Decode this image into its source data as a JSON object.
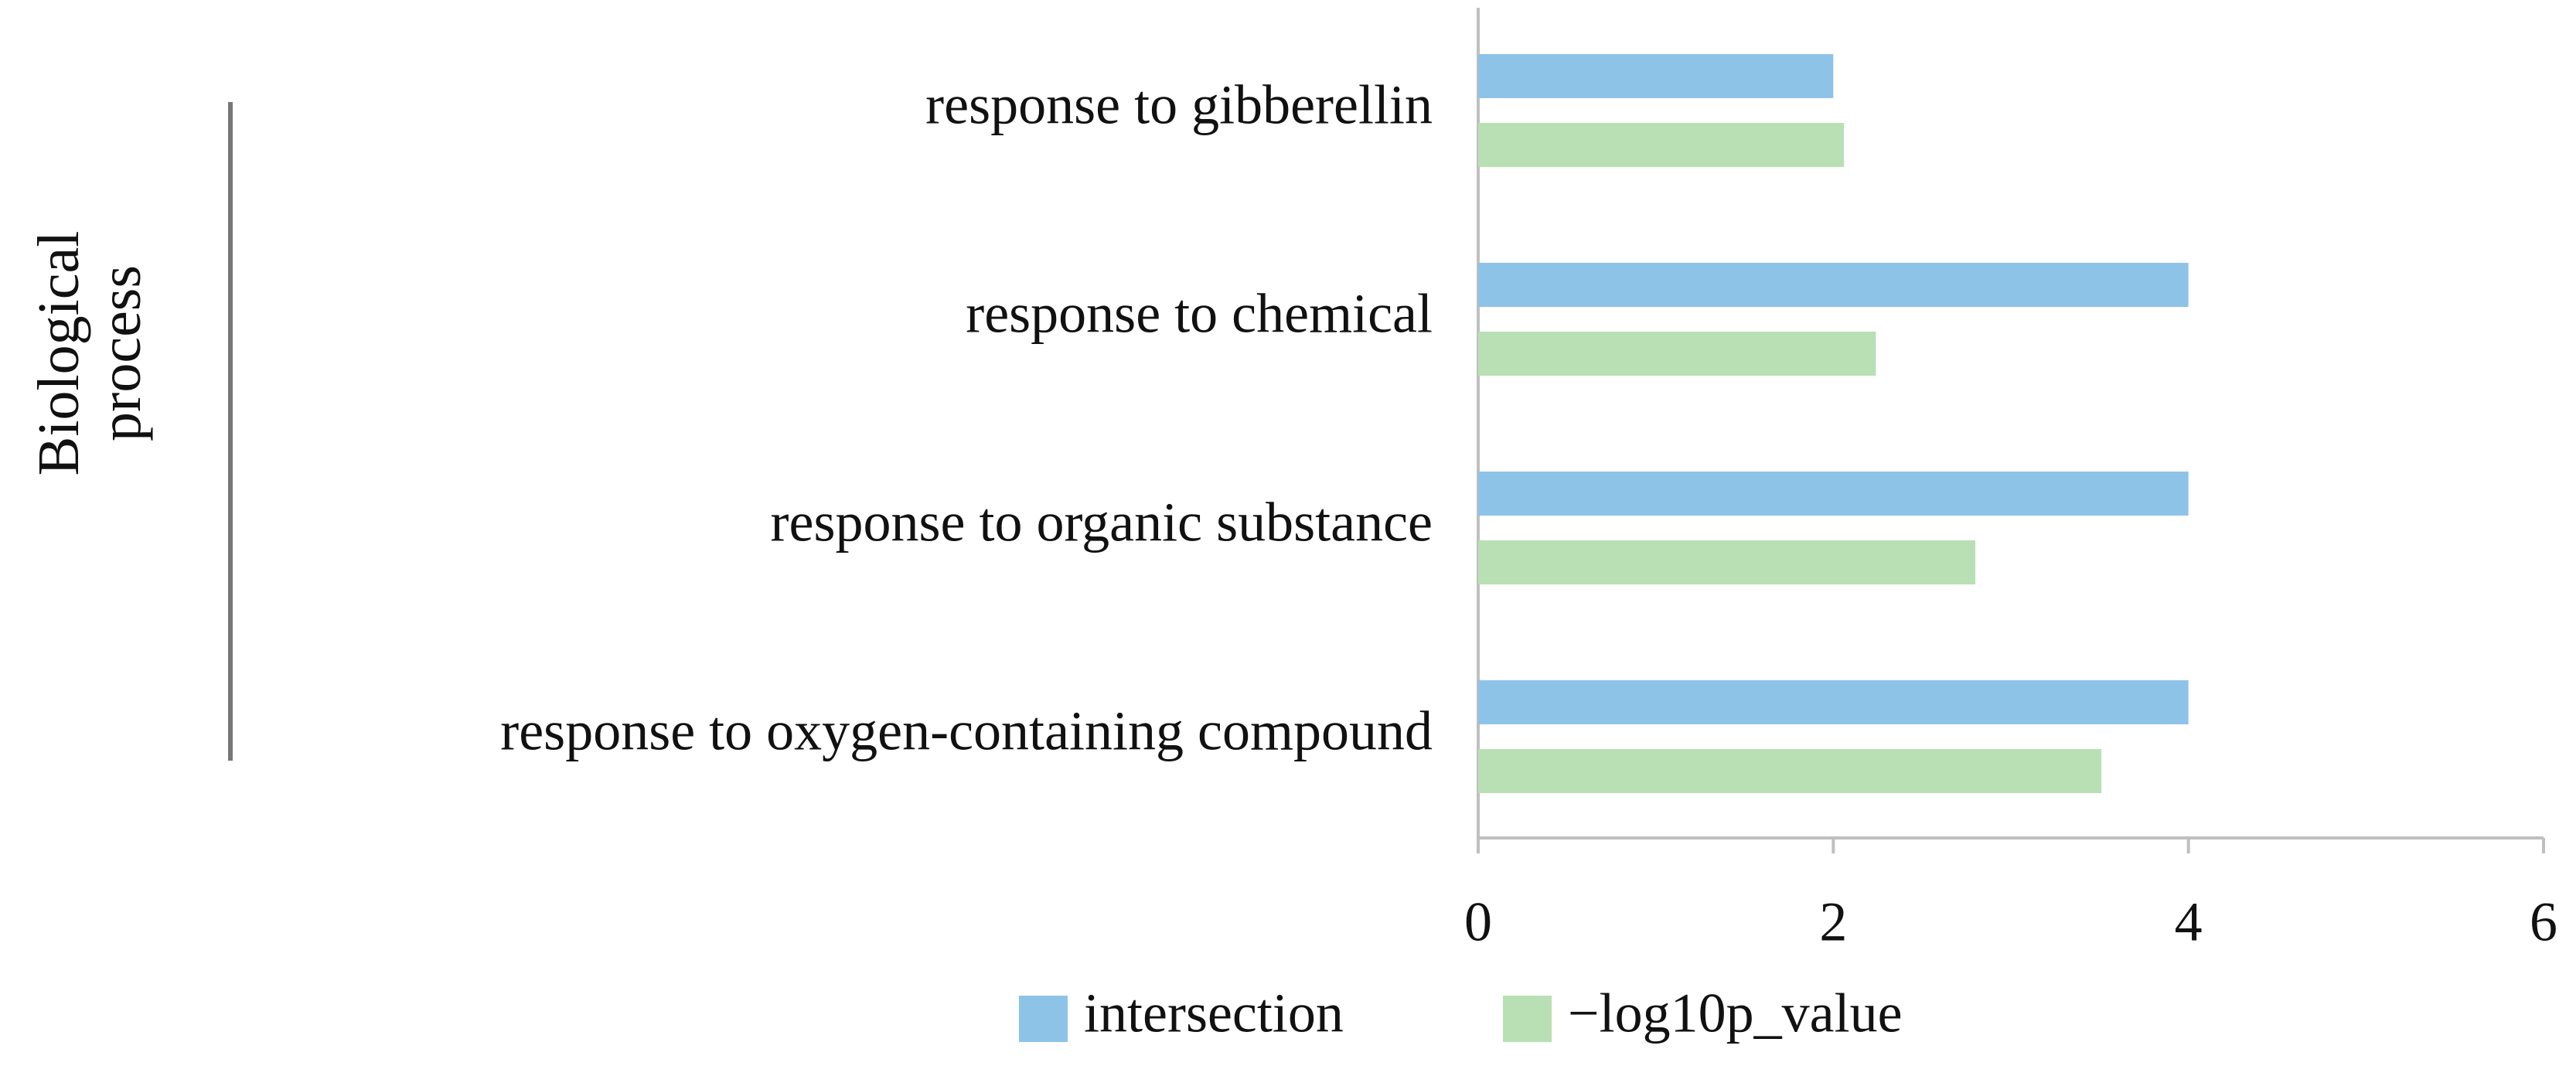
{
  "chart_data": {
    "type": "bar",
    "orientation": "horizontal",
    "group_label": "Biological process",
    "categories": [
      "response to gibberellin",
      "response to chemical",
      "response to organic substance",
      "response to oxygen-containing compound"
    ],
    "series": [
      {
        "name": "intersection",
        "color": "#8ec3e8",
        "values": [
          2,
          4,
          4,
          4
        ]
      },
      {
        "name": "−log10p_value",
        "color": "#b9e0b4",
        "values": [
          2.06,
          2.24,
          2.8,
          3.51
        ]
      }
    ],
    "xlim": [
      0,
      6
    ],
    "xticks": [
      0,
      2,
      4,
      6
    ],
    "legend": "bottom"
  }
}
